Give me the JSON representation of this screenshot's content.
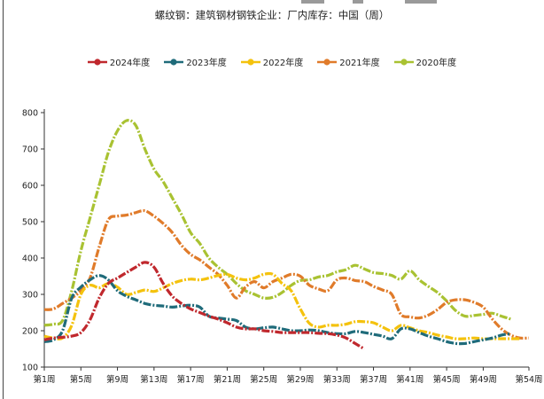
{
  "chart_data": {
    "type": "line",
    "title": "螺纹钢：建筑钢材钢铁企业：厂内库存：中国（周）",
    "xlabel": "",
    "ylabel": "",
    "ylim": [
      100,
      800
    ],
    "yticks": [
      "800",
      "700",
      "600",
      "500",
      "400",
      "300",
      "200",
      "100"
    ],
    "ytick_values": [
      800,
      700,
      600,
      500,
      400,
      300,
      200,
      100
    ],
    "xticks": [
      "第1周",
      "第5周",
      "第9周",
      "第13周",
      "第17周",
      "第21周",
      "第25周",
      "第29周",
      "第33周",
      "第37周",
      "第41周",
      "第45周",
      "第49周",
      "第54周"
    ],
    "xtick_weeks": [
      1,
      5,
      9,
      13,
      17,
      21,
      25,
      29,
      33,
      37,
      41,
      45,
      49,
      54
    ],
    "xlim": [
      1,
      54
    ],
    "legend_position": "top-center",
    "grid": false,
    "series": [
      {
        "name": "2024年度",
        "color": "#c0282d",
        "x": [
          1,
          2,
          3,
          4,
          5,
          6,
          7,
          8,
          9,
          10,
          11,
          12,
          13,
          14,
          15,
          16,
          17,
          18,
          19,
          20,
          21,
          22,
          23,
          24,
          25,
          26,
          27,
          28,
          29,
          30,
          31,
          32,
          33,
          34,
          35,
          36
        ],
        "values": [
          175,
          180,
          182,
          185,
          195,
          230,
          290,
          330,
          345,
          360,
          375,
          388,
          375,
          330,
          295,
          275,
          260,
          250,
          240,
          232,
          222,
          210,
          205,
          205,
          200,
          198,
          195,
          195,
          195,
          195,
          193,
          192,
          188,
          180,
          165,
          150
        ]
      },
      {
        "name": "2023年度",
        "color": "#1f6b7a",
        "x": [
          1,
          2,
          3,
          4,
          5,
          6,
          7,
          8,
          9,
          10,
          11,
          12,
          13,
          14,
          15,
          16,
          17,
          18,
          19,
          20,
          21,
          22,
          23,
          24,
          25,
          26,
          27,
          28,
          29,
          30,
          31,
          32,
          33,
          34,
          35,
          36,
          37,
          38,
          39,
          40,
          41,
          42,
          43,
          44,
          45,
          46,
          47,
          48,
          49,
          50,
          51,
          52
        ],
        "values": [
          170,
          175,
          200,
          290,
          320,
          340,
          352,
          340,
          310,
          295,
          285,
          275,
          270,
          268,
          265,
          268,
          270,
          265,
          240,
          235,
          232,
          228,
          210,
          205,
          208,
          210,
          205,
          200,
          200,
          202,
          200,
          195,
          192,
          192,
          198,
          195,
          190,
          185,
          178,
          205,
          205,
          195,
          185,
          178,
          170,
          165,
          165,
          170,
          175,
          180,
          188,
          192
        ]
      },
      {
        "name": "2022年度",
        "color": "#f4c20d",
        "x": [
          1,
          2,
          3,
          4,
          5,
          6,
          7,
          8,
          9,
          10,
          11,
          12,
          13,
          14,
          15,
          16,
          17,
          18,
          19,
          20,
          21,
          22,
          23,
          24,
          25,
          26,
          27,
          28,
          29,
          30,
          31,
          32,
          33,
          34,
          35,
          36,
          37,
          38,
          39,
          40,
          41,
          42,
          43,
          44,
          45,
          46,
          47,
          48,
          49,
          50,
          51,
          52,
          53
        ],
        "values": [
          185,
          180,
          180,
          215,
          300,
          325,
          318,
          330,
          320,
          300,
          305,
          312,
          308,
          318,
          330,
          338,
          342,
          340,
          345,
          352,
          355,
          345,
          340,
          345,
          355,
          355,
          330,
          310,
          260,
          220,
          210,
          215,
          215,
          218,
          225,
          225,
          222,
          210,
          200,
          215,
          208,
          200,
          195,
          188,
          183,
          178,
          178,
          180,
          178,
          178,
          178,
          178,
          178
        ]
      },
      {
        "name": "2021年度",
        "color": "#e07b2a",
        "x": [
          1,
          2,
          3,
          4,
          5,
          6,
          7,
          8,
          9,
          10,
          11,
          12,
          13,
          14,
          15,
          16,
          17,
          18,
          19,
          20,
          21,
          22,
          23,
          24,
          25,
          26,
          27,
          28,
          29,
          30,
          31,
          32,
          33,
          34,
          35,
          36,
          37,
          38,
          39,
          40,
          41,
          42,
          43,
          44,
          45,
          46,
          47,
          48,
          49,
          50,
          51,
          52,
          53,
          54
        ],
        "values": [
          258,
          260,
          275,
          290,
          310,
          345,
          430,
          505,
          515,
          518,
          525,
          530,
          515,
          495,
          470,
          435,
          410,
          395,
          375,
          355,
          325,
          290,
          320,
          335,
          318,
          335,
          345,
          355,
          350,
          325,
          315,
          310,
          340,
          345,
          338,
          335,
          322,
          312,
          300,
          245,
          238,
          235,
          243,
          258,
          278,
          285,
          285,
          278,
          265,
          232,
          205,
          188,
          180,
          180
        ]
      },
      {
        "name": "2020年度",
        "color": "#a9c232",
        "x": [
          1,
          2,
          3,
          4,
          5,
          6,
          7,
          8,
          9,
          10,
          11,
          12,
          13,
          14,
          15,
          16,
          17,
          18,
          19,
          20,
          21,
          22,
          23,
          24,
          25,
          26,
          27,
          28,
          29,
          30,
          31,
          32,
          33,
          34,
          35,
          36,
          37,
          38,
          39,
          40,
          41,
          42,
          43,
          44,
          45,
          46,
          47,
          48,
          49,
          50,
          51,
          52
        ],
        "values": [
          215,
          218,
          228,
          310,
          420,
          510,
          600,
          690,
          750,
          778,
          765,
          700,
          645,
          610,
          565,
          520,
          470,
          440,
          400,
          375,
          355,
          330,
          310,
          300,
          290,
          292,
          305,
          325,
          338,
          340,
          348,
          352,
          362,
          368,
          380,
          370,
          360,
          357,
          352,
          342,
          365,
          340,
          322,
          305,
          282,
          255,
          240,
          242,
          245,
          248,
          240,
          232
        ]
      }
    ]
  }
}
